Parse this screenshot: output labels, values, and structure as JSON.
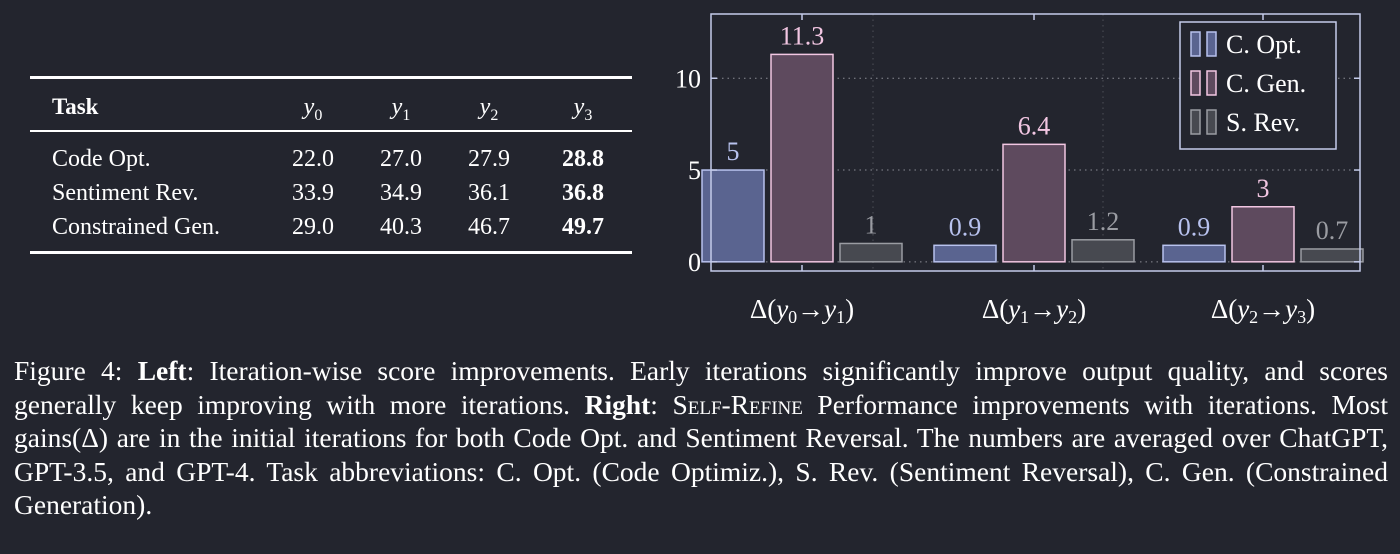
{
  "table": {
    "header": {
      "task": "Task",
      "y0": "y",
      "y1": "y",
      "y2": "y",
      "y3": "y",
      "s0": "0",
      "s1": "1",
      "s2": "2",
      "s3": "3"
    },
    "rows": [
      {
        "task": "Code Opt.",
        "y0": "22.0",
        "y1": "27.0",
        "y2": "27.9",
        "y3": "28.8"
      },
      {
        "task": "Sentiment Rev.",
        "y0": "33.9",
        "y1": "34.9",
        "y2": "36.1",
        "y3": "36.8"
      },
      {
        "task": "Constrained Gen.",
        "y0": "29.0",
        "y1": "40.3",
        "y2": "46.7",
        "y3": "49.7"
      }
    ]
  },
  "chart_data": {
    "type": "bar",
    "categories": [
      "Δ(y0→y1)",
      "Δ(y1→y2)",
      "Δ(y2→y3)"
    ],
    "series": [
      {
        "name": "C. Opt.",
        "values": [
          5,
          0.9,
          0.9
        ],
        "labels": [
          "5",
          "0.9",
          "0.9"
        ],
        "color": "#5a6490",
        "stroke": "#b8c2ee"
      },
      {
        "name": "C. Gen.",
        "values": [
          11.3,
          6.4,
          3
        ],
        "labels": [
          "11.3",
          "6.4",
          "3"
        ],
        "color": "#5e4a5e",
        "stroke": "#f2c6e2"
      },
      {
        "name": "S. Rev.",
        "values": [
          1,
          1.2,
          0.7
        ],
        "labels": [
          "1",
          "1.2",
          "0.7"
        ],
        "color": "#474950",
        "stroke": "#9a9ca2"
      }
    ],
    "yticks": [
      0,
      5,
      10
    ],
    "ylim": [
      -0.5,
      13.5
    ],
    "legend": "top-right",
    "grid": true
  },
  "caption": {
    "prefix": "Figure 4: ",
    "left_label": "Left",
    "left_text": ": Iteration-wise score improvements. Early iterations significantly improve output quality, and scores generally keep improving with more iterations. ",
    "right_label": "Right",
    "right_pre": ": ",
    "method": "Self-Refine",
    "right_text": " Performance improvements with iterations. Most gains(Δ) are in the initial iterations for both Code Opt. and Sentiment Reversal. The numbers are averaged over ChatGPT, GPT-3.5, and GPT-4. Task abbreviations: C. Opt. (Code Optimiz.), S. Rev. (Sentiment Reversal), C. Gen. (Constrained Generation)."
  }
}
